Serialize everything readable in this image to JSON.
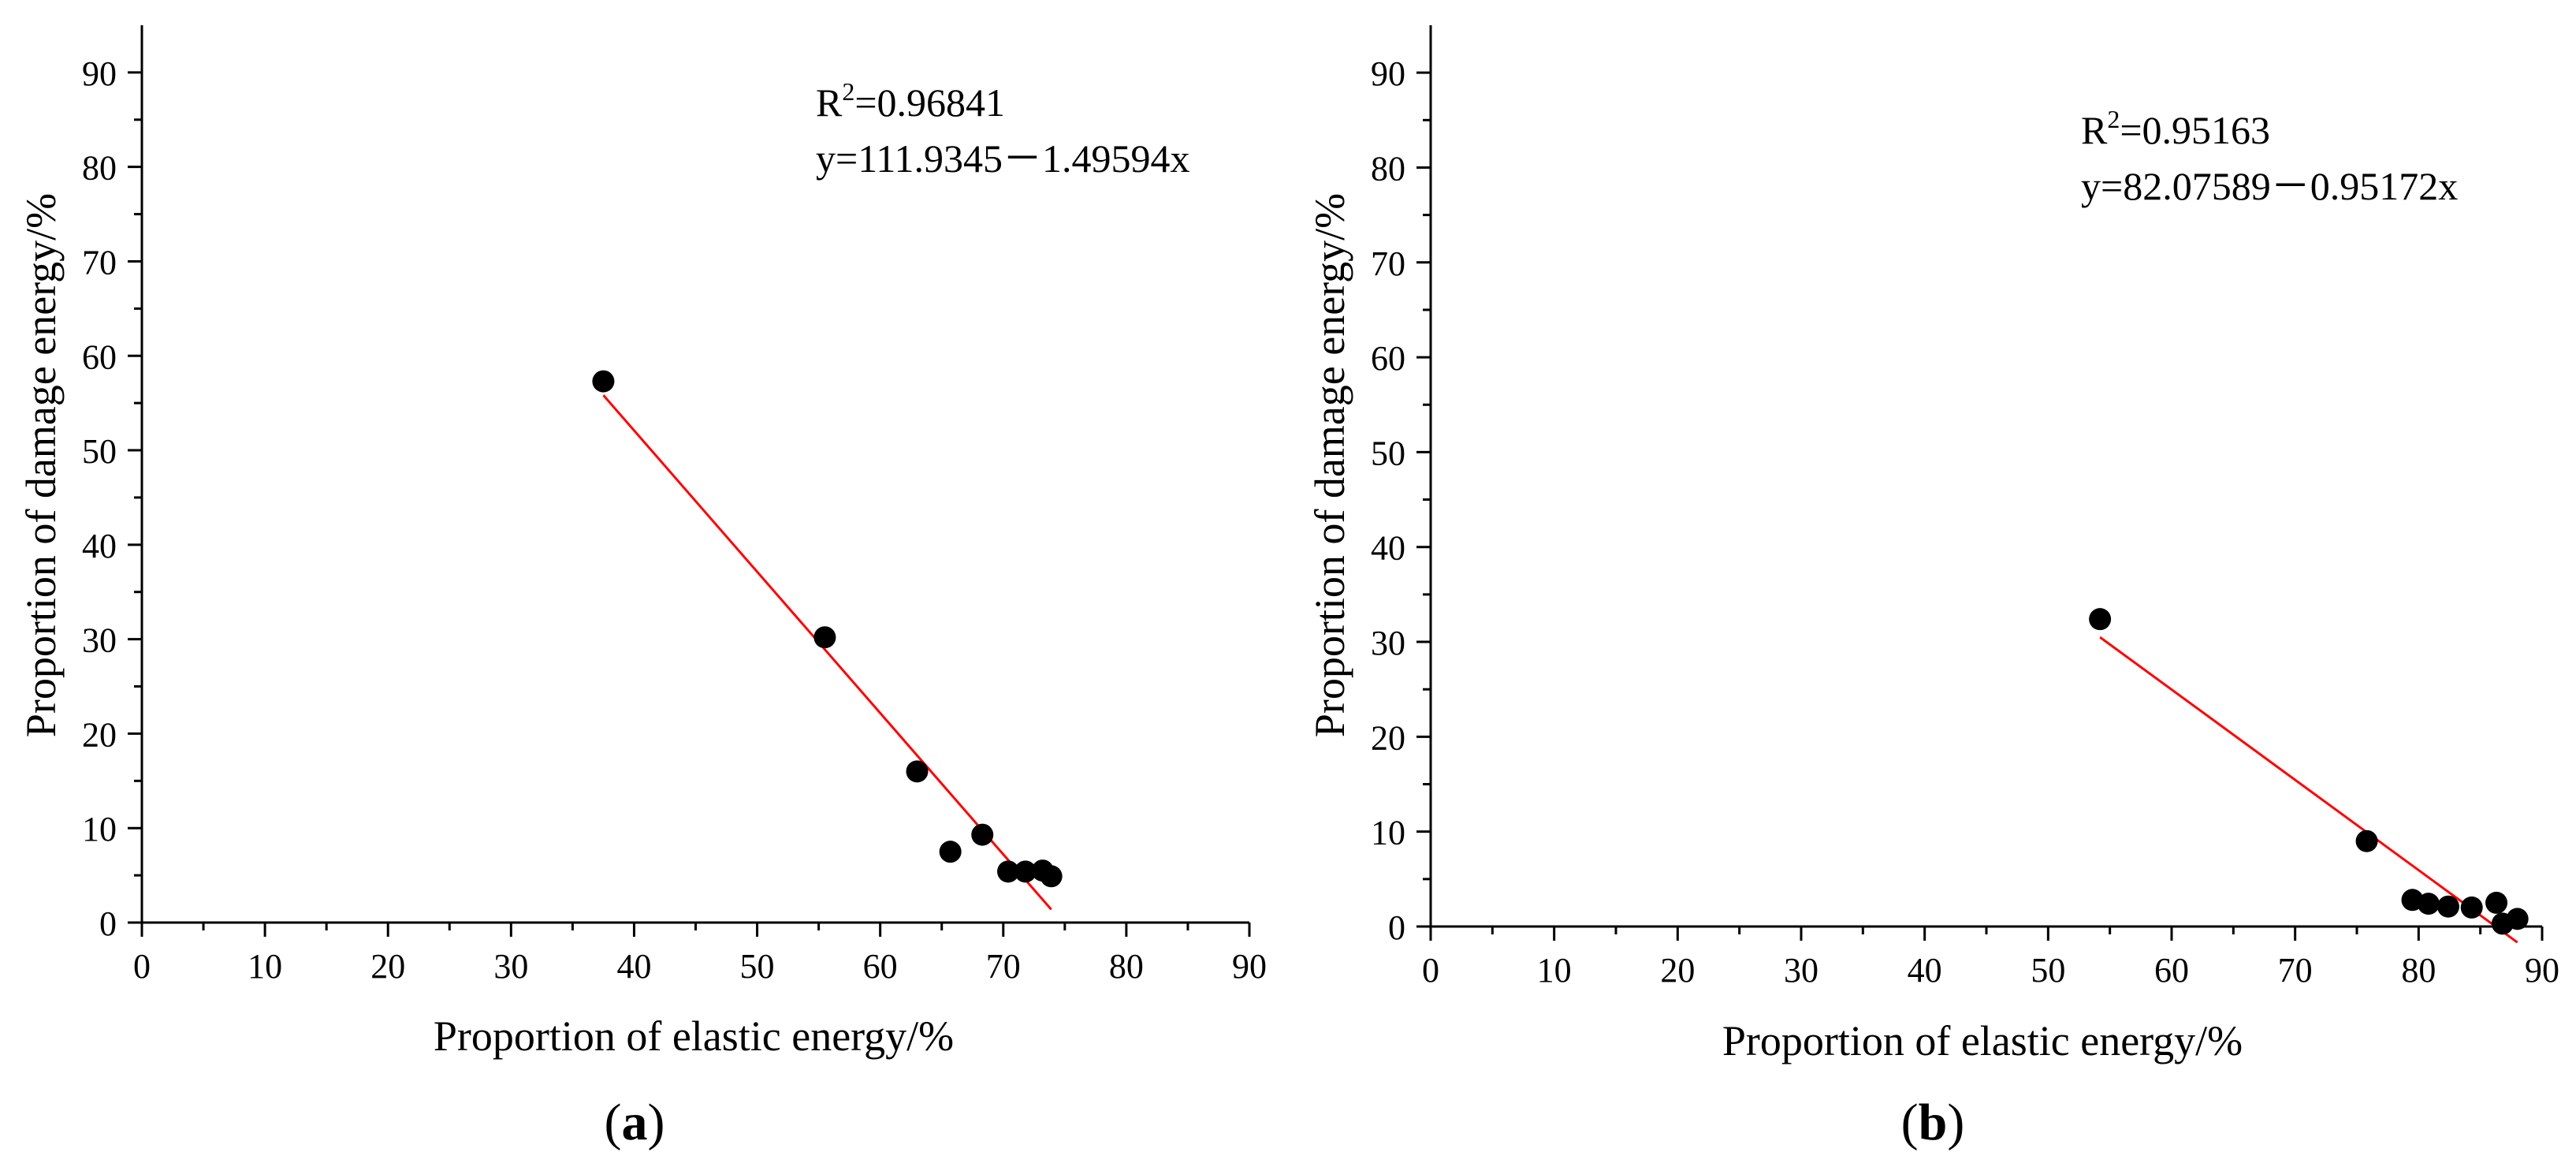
{
  "chart_data": [
    {
      "type": "scatter",
      "panel_label": "a",
      "xlabel": "Proportion of elastic energy/%",
      "ylabel": "Proportion of damage energy/%",
      "xlim": [
        0,
        90
      ],
      "ylim": [
        0,
        95
      ],
      "xticks": [
        "0",
        "10",
        "20",
        "30",
        "40",
        "50",
        "60",
        "70",
        "80",
        "90"
      ],
      "yticks": [
        "0",
        "10",
        "20",
        "30",
        "40",
        "50",
        "60",
        "70",
        "80",
        "90"
      ],
      "r2_label": "R",
      "r2_value": "=0.96841",
      "equation": "y=111.9345－1.49594x",
      "points": [
        {
          "x": 37.5,
          "y": 57.3
        },
        {
          "x": 55.5,
          "y": 30.2
        },
        {
          "x": 63.0,
          "y": 16.0
        },
        {
          "x": 65.7,
          "y": 7.5
        },
        {
          "x": 68.3,
          "y": 9.3
        },
        {
          "x": 70.4,
          "y": 5.4
        },
        {
          "x": 71.8,
          "y": 5.4
        },
        {
          "x": 73.2,
          "y": 5.5
        },
        {
          "x": 73.9,
          "y": 4.9
        }
      ],
      "fit": {
        "intercept": 111.9345,
        "slope": -1.49594
      }
    },
    {
      "type": "scatter",
      "panel_label": "b",
      "xlabel": "Proportion of elastic energy/%",
      "ylabel": "Proportion of damage energy/%",
      "xlim": [
        0,
        90
      ],
      "ylim": [
        0,
        95
      ],
      "xticks": [
        "0",
        "10",
        "20",
        "30",
        "40",
        "50",
        "60",
        "70",
        "80",
        "90"
      ],
      "yticks": [
        "0",
        "10",
        "20",
        "30",
        "40",
        "50",
        "60",
        "70",
        "80",
        "90"
      ],
      "r2_label": "R",
      "r2_value": "=0.95163",
      "equation": "y=82.07589－0.95172x",
      "points": [
        {
          "x": 54.2,
          "y": 32.4
        },
        {
          "x": 75.8,
          "y": 9.0
        },
        {
          "x": 79.5,
          "y": 2.8
        },
        {
          "x": 80.8,
          "y": 2.4
        },
        {
          "x": 82.4,
          "y": 2.1
        },
        {
          "x": 84.3,
          "y": 2.0
        },
        {
          "x": 86.3,
          "y": 2.5
        },
        {
          "x": 86.8,
          "y": 0.3
        },
        {
          "x": 88.0,
          "y": 0.8
        }
      ],
      "fit": {
        "intercept": 82.07589,
        "slope": -0.95172
      }
    }
  ]
}
